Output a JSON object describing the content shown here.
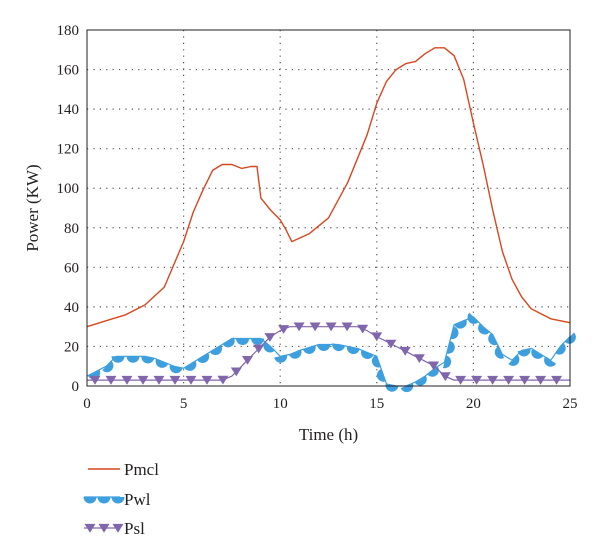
{
  "chart_data": {
    "type": "line",
    "title": "",
    "xlabel": "Time (h)",
    "ylabel": "Power (KW)",
    "xlim": [
      0,
      25
    ],
    "ylim": [
      0,
      180
    ],
    "xticks": [
      0,
      5,
      10,
      15,
      20,
      25
    ],
    "yticks": [
      0,
      20,
      40,
      60,
      80,
      100,
      120,
      140,
      160,
      180
    ],
    "grid": "dotted",
    "legend_position": "bottom-left",
    "series": [
      {
        "name": "Pmcl",
        "color": "#d7471f",
        "marker": "none",
        "x": [
          0,
          1,
          2,
          3,
          4,
          5,
          5.5,
          6,
          6.5,
          7,
          7.5,
          8,
          8.5,
          8.8,
          9,
          9.5,
          10,
          10.3,
          10.6,
          11.5,
          12.5,
          13.5,
          14.5,
          15,
          15.5,
          16,
          16.5,
          17,
          17.5,
          18,
          18.5,
          19,
          19.5,
          20,
          20.5,
          21,
          21.5,
          22,
          22.5,
          23,
          24,
          25
        ],
        "y": [
          30,
          33,
          36,
          41,
          50,
          73,
          88,
          99,
          109,
          112,
          112,
          110,
          111,
          111,
          95,
          89,
          84,
          79,
          73,
          77,
          85,
          103,
          127,
          143,
          154,
          160,
          163,
          164,
          168,
          171,
          171,
          167,
          155,
          133,
          112,
          89,
          68,
          54,
          45,
          39,
          34,
          32
        ]
      },
      {
        "name": "Pwl",
        "color": "#3d9fde",
        "marker": "semicircle",
        "x": [
          0,
          1,
          1.5,
          2,
          3,
          3.5,
          4,
          4.5,
          5,
          6,
          7,
          7.5,
          8,
          8.5,
          9,
          9.5,
          10,
          10.5,
          11,
          12,
          13,
          14,
          15,
          15.5,
          16,
          16.5,
          17,
          17.5,
          18,
          18.5,
          19,
          19.5,
          20,
          20.5,
          21,
          21.5,
          22,
          22.5,
          23,
          23.5,
          24,
          24.5,
          25
        ],
        "y": [
          5,
          10,
          15,
          15,
          15,
          14,
          12,
          10,
          9,
          15,
          21,
          24,
          24,
          24,
          24,
          20,
          15,
          16,
          18,
          21,
          21,
          19,
          15,
          1,
          0,
          0,
          2,
          5,
          9,
          12,
          31,
          33,
          35,
          30,
          26,
          16,
          13,
          18,
          19,
          16,
          13,
          20,
          25
        ]
      },
      {
        "name": "Psl",
        "color": "#8066ac",
        "marker": "triangle-down",
        "x": [
          0,
          1,
          2,
          3,
          4,
          5,
          6,
          7,
          7.5,
          8,
          8.5,
          9,
          9.5,
          10,
          10.5,
          11,
          12,
          13,
          14,
          14.5,
          15,
          16,
          17,
          18,
          18.5,
          19,
          20,
          21,
          22,
          23,
          24,
          25
        ],
        "y": [
          3,
          3,
          3,
          3,
          3,
          3,
          3,
          3,
          5,
          10,
          15,
          20,
          25,
          28,
          30,
          30,
          30,
          30,
          30,
          28,
          25,
          20,
          15,
          10,
          5,
          3,
          3,
          3,
          3,
          3,
          3,
          3
        ]
      }
    ]
  }
}
